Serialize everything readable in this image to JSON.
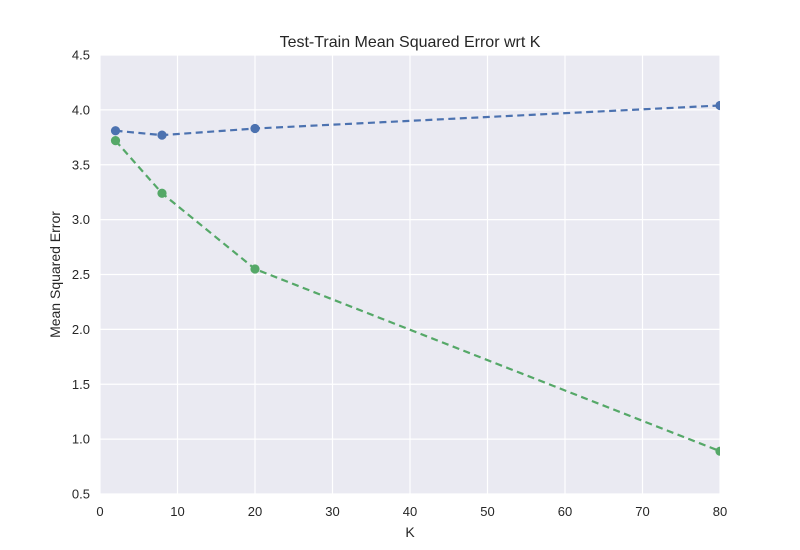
{
  "chart_data": {
    "type": "line",
    "title": "Test-Train Mean Squared Error wrt K",
    "xlabel": "K",
    "ylabel": "Mean Squared Error",
    "xlim": [
      0,
      80
    ],
    "ylim": [
      0.5,
      4.5
    ],
    "xticks": [
      0,
      10,
      20,
      30,
      40,
      50,
      60,
      70,
      80
    ],
    "yticks": [
      0.5,
      1.0,
      1.5,
      2.0,
      2.5,
      3.0,
      3.5,
      4.0,
      4.5
    ],
    "xtick_labels": [
      "0",
      "10",
      "20",
      "30",
      "40",
      "50",
      "60",
      "70",
      "80"
    ],
    "ytick_labels": [
      "0.5",
      "1.0",
      "1.5",
      "2.0",
      "2.5",
      "3.0",
      "3.5",
      "4.0",
      "4.5"
    ],
    "grid": true,
    "x": [
      2,
      8,
      20,
      80
    ],
    "series": [
      {
        "color": "#4c72b0",
        "values": [
          3.81,
          3.77,
          3.83,
          4.04
        ]
      },
      {
        "color": "#55a868",
        "values": [
          3.72,
          3.24,
          2.55,
          0.89
        ]
      }
    ]
  }
}
